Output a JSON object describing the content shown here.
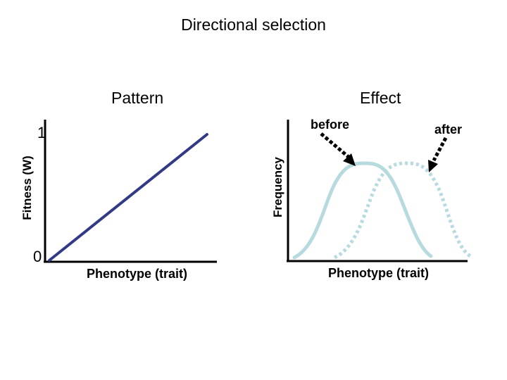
{
  "title": "Directional selection",
  "pattern": {
    "heading": "Pattern",
    "y_axis_label": "Fitness (W)",
    "x_axis_label": "Phenotype (trait)",
    "y_tick_top": "1",
    "y_tick_bottom": "0"
  },
  "effect": {
    "heading": "Effect",
    "y_axis_label": "Frequency",
    "x_axis_label": "Phenotype (trait)",
    "before_label": "before",
    "after_label": "after"
  },
  "colors": {
    "fitness_line": "#333a85",
    "curve": "#b7dadf",
    "axis": "#000000",
    "arrow": "#000000"
  }
}
